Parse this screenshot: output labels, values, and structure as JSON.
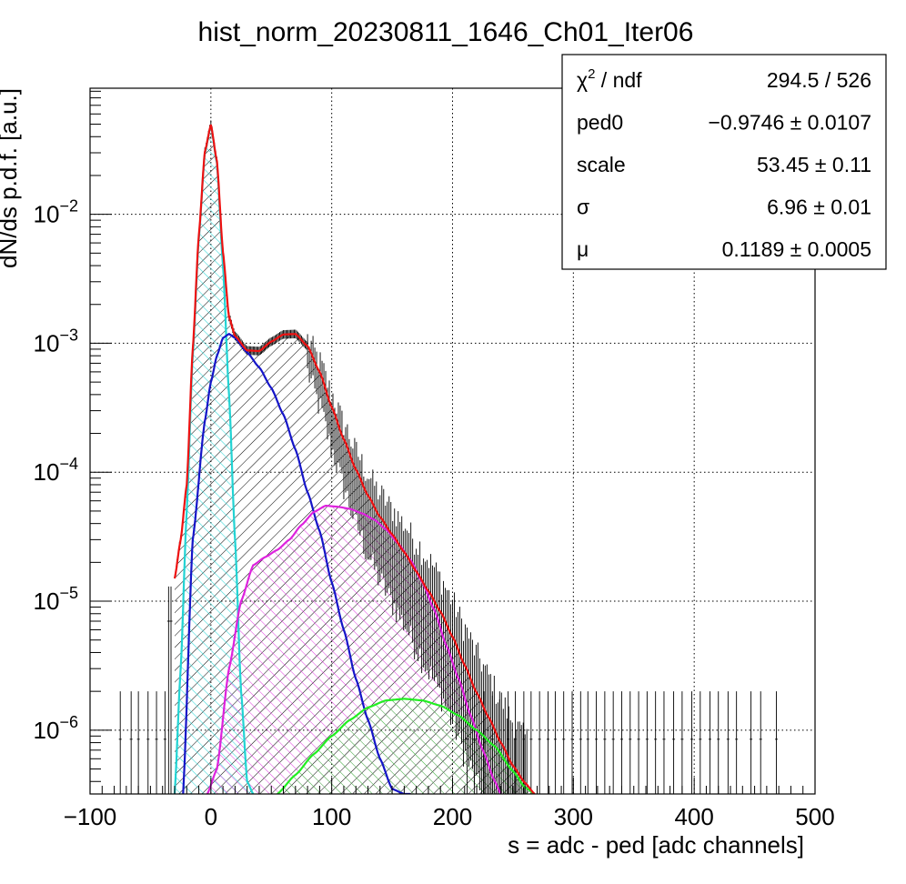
{
  "chart_data": {
    "type": "line",
    "title": "hist_norm_20230811_1646_Ch01_Iter06",
    "xlabel": "s = adc - ped [adc channels]",
    "ylabel": "dN/ds p.d.f. [a.u.]",
    "xlim": [
      -100,
      500
    ],
    "ylim": [
      3.2e-07,
      0.095
    ],
    "y_scale": "log",
    "grid": true,
    "x_ticks": [
      "−100",
      "0",
      "100",
      "200",
      "300",
      "400",
      "500"
    ],
    "x_tick_values": [
      -100,
      0,
      100,
      200,
      300,
      400,
      500
    ],
    "y_ticks": [
      {
        "base": "10",
        "exp": "−2",
        "value": 0.01
      },
      {
        "base": "10",
        "exp": "−3",
        "value": 0.001
      },
      {
        "base": "10",
        "exp": "−4",
        "value": 0.0001
      },
      {
        "base": "10",
        "exp": "−5",
        "value": 1e-05
      },
      {
        "base": "10",
        "exp": "−6",
        "value": 1e-06
      }
    ],
    "series": [
      {
        "key": "pedestal",
        "color": "#22d3d3",
        "hatch": true,
        "x": [
          -30,
          -25,
          -20,
          -15,
          -10,
          -5,
          0,
          5,
          10,
          15,
          20,
          25,
          30,
          35
        ],
        "y": [
          3.2e-07,
          3e-06,
          5e-05,
          0.0008,
          0.0065,
          0.03,
          0.049,
          0.025,
          0.004,
          0.0004,
          3e-05,
          2e-06,
          4e-07,
          3.2e-07
        ]
      },
      {
        "key": "one-pe",
        "color": "#1515c8",
        "hatch": true,
        "x": [
          -23,
          -15,
          -5,
          0,
          5,
          10,
          15,
          20,
          30,
          40,
          50,
          60,
          70,
          80,
          90,
          100,
          110,
          120,
          130,
          140,
          150,
          160,
          165
        ],
        "y": [
          3.2e-07,
          3e-05,
          0.00025,
          0.0005,
          0.0008,
          0.0011,
          0.00118,
          0.0011,
          0.00085,
          0.00065,
          0.00045,
          0.00028,
          0.00015,
          7e-05,
          3.5e-05,
          1.4e-05,
          6e-06,
          2.5e-06,
          1.2e-06,
          6e-07,
          3.5e-07,
          3.2e-07,
          3.2e-07
        ]
      },
      {
        "key": "two-pe",
        "color": "#dd22dd",
        "hatch": true,
        "x": [
          -3,
          5,
          15,
          25,
          35,
          45,
          55,
          65,
          75,
          85,
          95,
          105,
          115,
          125,
          135,
          145,
          155,
          165,
          175,
          185,
          195,
          205,
          215,
          225,
          235,
          240
        ],
        "y": [
          3.2e-07,
          5e-07,
          3e-06,
          1e-05,
          1.9e-05,
          2.2e-05,
          2.5e-05,
          3e-05,
          3.9e-05,
          4.9e-05,
          5.5e-05,
          5.4e-05,
          5.2e-05,
          4.8e-05,
          4.3e-05,
          3.6e-05,
          2.8e-05,
          2.1e-05,
          1.4e-05,
          8.5e-06,
          4.5e-06,
          2.5e-06,
          1.3e-06,
          7e-07,
          4e-07,
          3.2e-07
        ]
      },
      {
        "key": "three-pe",
        "color": "#22ee22",
        "hatch": true,
        "x": [
          55,
          70,
          85,
          100,
          115,
          130,
          145,
          160,
          175,
          190,
          205,
          220,
          235,
          250,
          260,
          268
        ],
        "y": [
          3.2e-07,
          4.5e-07,
          6.5e-07,
          9e-07,
          1.2e-06,
          1.5e-06,
          1.7e-06,
          1.75e-06,
          1.7e-06,
          1.55e-06,
          1.3e-06,
          1e-06,
          7.5e-07,
          4.8e-07,
          3.6e-07,
          3.2e-07
        ]
      },
      {
        "key": "total-fit",
        "color": "#ee1111",
        "hatch": false,
        "x": [
          -30,
          -25,
          -20,
          -15,
          -10,
          -5,
          0,
          5,
          10,
          15,
          20,
          30,
          40,
          50,
          60,
          70,
          80,
          90,
          100,
          110,
          120,
          130,
          140,
          150,
          160,
          170,
          180,
          190,
          200,
          210,
          220,
          230,
          240,
          250,
          260,
          268
        ],
        "y": [
          1.5e-05,
          3e-05,
          8e-05,
          0.0009,
          0.0069,
          0.0305,
          0.0495,
          0.0258,
          0.0051,
          0.0016,
          0.00114,
          0.00088,
          0.00087,
          0.00103,
          0.00117,
          0.00118,
          0.00095,
          0.0006,
          0.00032,
          0.00018,
          0.000105,
          6.6e-05,
          4.5e-05,
          3.3e-05,
          2.4e-05,
          1.7e-05,
          1.2e-05,
          8.3e-06,
          5.3e-06,
          3.2e-06,
          1.95e-06,
          1.25e-06,
          8e-07,
          5.3e-07,
          3.9e-07,
          3.2e-07
        ]
      }
    ],
    "stats_box": [
      {
        "label_main": "χ",
        "label_sup": "2",
        "label_rest": " / ndf",
        "value": "294.5 / 526"
      },
      {
        "label_main": "ped0",
        "value": "−0.9746 ± 0.0107"
      },
      {
        "label_main": "scale",
        "value": "53.45 ± 0.11"
      },
      {
        "label_main": "σ",
        "value": "6.96 ± 0.01"
      },
      {
        "label_main": "μ",
        "value": "0.1189 ± 0.0005"
      }
    ]
  }
}
